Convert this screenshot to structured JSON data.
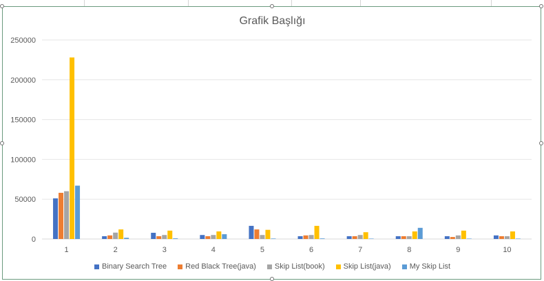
{
  "chart_data": {
    "type": "bar",
    "title": "Grafik Başlığı",
    "xlabel": "",
    "ylabel": "",
    "categories": [
      "1",
      "2",
      "3",
      "4",
      "5",
      "6",
      "7",
      "8",
      "9",
      "10"
    ],
    "ylim": [
      0,
      250000
    ],
    "yticks": [
      0,
      50000,
      100000,
      150000,
      200000,
      250000
    ],
    "grid": true,
    "legend_position": "bottom",
    "series": [
      {
        "name": "Binary Search Tree",
        "color": "#4472C4",
        "values": [
          51000,
          3500,
          7800,
          5000,
          16500,
          3500,
          3500,
          3500,
          3500,
          4500
        ]
      },
      {
        "name": "Red Black Tree(java)",
        "color": "#ED7D31",
        "values": [
          58000,
          4500,
          3500,
          3500,
          12000,
          4500,
          3500,
          3500,
          2500,
          3500
        ]
      },
      {
        "name": "Skip List(book)",
        "color": "#A5A5A5",
        "values": [
          60000,
          8000,
          5000,
          5000,
          5000,
          5000,
          5000,
          3500,
          4500,
          3500
        ]
      },
      {
        "name": "Skip List(java)",
        "color": "#FFC000",
        "values": [
          228000,
          12000,
          10500,
          9500,
          11500,
          16500,
          8500,
          9500,
          10500,
          9500
        ]
      },
      {
        "name": "My Skip List",
        "color": "#5B9BD5",
        "values": [
          67000,
          1500,
          800,
          6000,
          600,
          700,
          500,
          14000,
          500,
          500
        ]
      }
    ]
  }
}
